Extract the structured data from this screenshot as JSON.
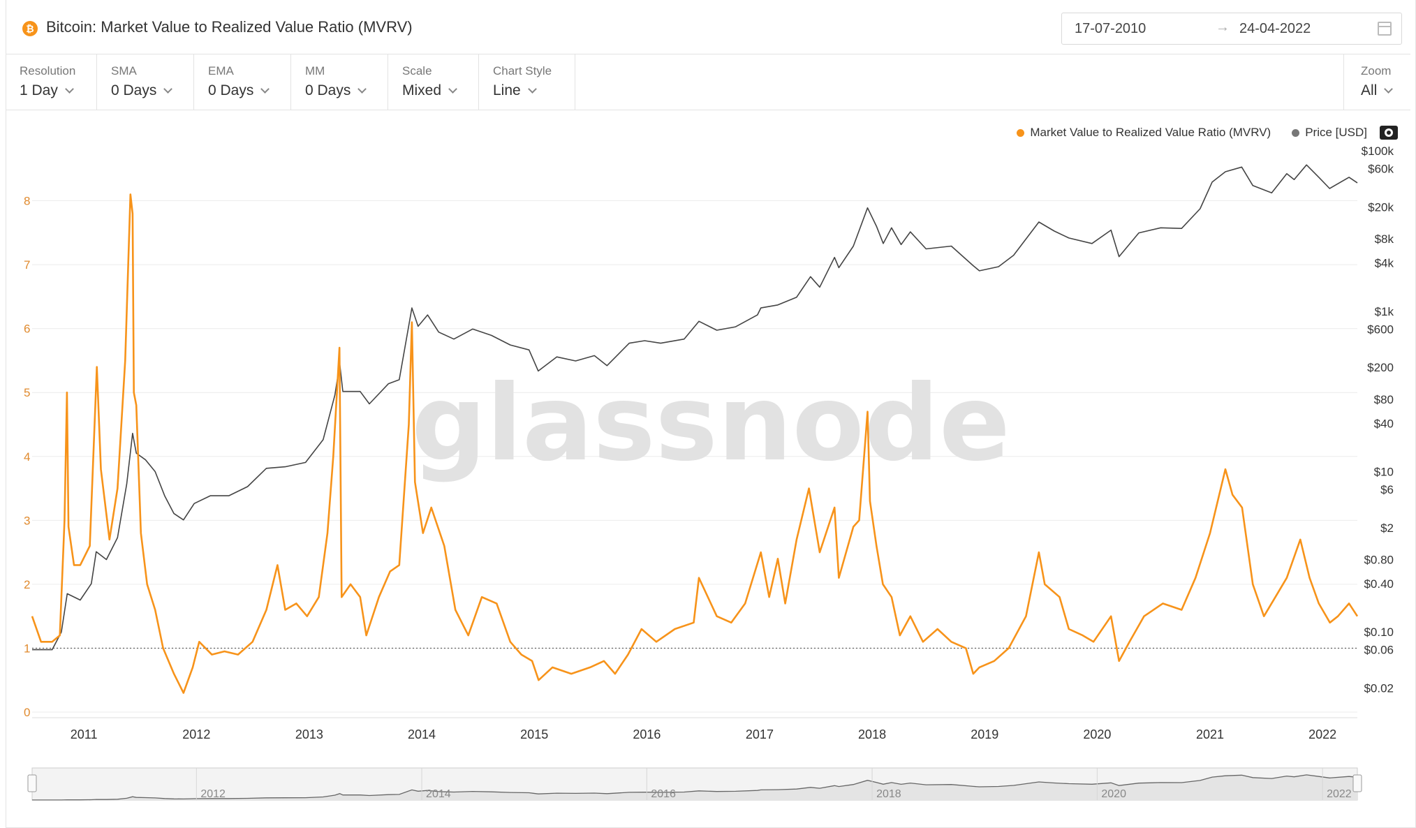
{
  "header": {
    "title": "Bitcoin: Market Value to Realized Value Ratio (MVRV)",
    "logo_icon": "bitcoin-logo-icon",
    "logo_glyph": "₿",
    "date_from": "17-07-2010",
    "date_arrow": "→",
    "date_to": "24-04-2022"
  },
  "controls": [
    {
      "label": "Resolution",
      "value": "1 Day"
    },
    {
      "label": "SMA",
      "value": "0 Days"
    },
    {
      "label": "EMA",
      "value": "0 Days"
    },
    {
      "label": "MM",
      "value": "0 Days"
    },
    {
      "label": "Scale",
      "value": "Mixed"
    },
    {
      "label": "Chart Style",
      "value": "Line"
    }
  ],
  "zoom": {
    "label": "Zoom",
    "value": "All"
  },
  "watermark": "glassnode",
  "colors": {
    "mvrv": "#f7931a",
    "price": "#444444",
    "grid": "#ececec"
  },
  "chart_data": {
    "type": "line",
    "title": "Bitcoin: Market Value to Realized Value Ratio (MVRV)",
    "legend_position": "top-right",
    "grid": true,
    "x_ticks": [
      "2011",
      "2012",
      "2013",
      "2014",
      "2015",
      "2016",
      "2017",
      "2018",
      "2019",
      "2020",
      "2021",
      "2022"
    ],
    "x_range": [
      "2010-07-17",
      "2022-04-24"
    ],
    "y_left": {
      "label": "",
      "range": [
        0,
        9
      ],
      "ticks": [
        "0",
        "1",
        "2",
        "3",
        "4",
        "5",
        "6",
        "7",
        "8"
      ],
      "scale": "linear"
    },
    "y_right": {
      "label": "",
      "range": [
        0.01,
        150000
      ],
      "scale": "log",
      "ticks": [
        "$100k",
        "$60k",
        "$20k",
        "$8k",
        "$4k",
        "$1k",
        "$600",
        "$200",
        "$80",
        "$40",
        "$10",
        "$6",
        "$2",
        "$0.80",
        "$0.40",
        "$0.10",
        "$0.06",
        "$0.02"
      ],
      "tick_values": [
        100000,
        60000,
        20000,
        8000,
        4000,
        1000,
        600,
        200,
        80,
        40,
        10,
        6,
        2,
        0.8,
        0.4,
        0.1,
        0.06,
        0.02
      ]
    },
    "reference_line": {
      "axis": "left",
      "value": 1,
      "style": "dotted"
    },
    "series": [
      {
        "name": "Market Value to Realized Value Ratio (MVRV)",
        "axis": "left",
        "points": [
          [
            "2010-07-17",
            1.5
          ],
          [
            "2010-08-15",
            1.1
          ],
          [
            "2010-09-20",
            1.1
          ],
          [
            "2010-10-15",
            1.2
          ],
          [
            "2010-10-30",
            3.0
          ],
          [
            "2010-11-07",
            5.0
          ],
          [
            "2010-11-12",
            2.9
          ],
          [
            "2010-11-30",
            2.3
          ],
          [
            "2010-12-20",
            2.3
          ],
          [
            "2011-01-20",
            2.6
          ],
          [
            "2011-02-12",
            5.4
          ],
          [
            "2011-02-25",
            3.8
          ],
          [
            "2011-03-25",
            2.7
          ],
          [
            "2011-04-20",
            3.5
          ],
          [
            "2011-05-15",
            5.5
          ],
          [
            "2011-06-01",
            8.1
          ],
          [
            "2011-06-08",
            7.8
          ],
          [
            "2011-06-12",
            5.0
          ],
          [
            "2011-06-20",
            4.8
          ],
          [
            "2011-07-05",
            2.8
          ],
          [
            "2011-07-25",
            2.0
          ],
          [
            "2011-08-20",
            1.6
          ],
          [
            "2011-09-15",
            1.0
          ],
          [
            "2011-10-20",
            0.6
          ],
          [
            "2011-11-20",
            0.3
          ],
          [
            "2011-12-20",
            0.7
          ],
          [
            "2012-01-10",
            1.1
          ],
          [
            "2012-02-20",
            0.9
          ],
          [
            "2012-04-01",
            0.95
          ],
          [
            "2012-05-15",
            0.9
          ],
          [
            "2012-07-01",
            1.1
          ],
          [
            "2012-08-15",
            1.6
          ],
          [
            "2012-09-20",
            2.3
          ],
          [
            "2012-10-15",
            1.6
          ],
          [
            "2012-11-20",
            1.7
          ],
          [
            "2012-12-25",
            1.5
          ],
          [
            "2013-02-01",
            1.8
          ],
          [
            "2013-03-01",
            2.8
          ],
          [
            "2013-03-20",
            4.0
          ],
          [
            "2013-04-09",
            5.7
          ],
          [
            "2013-04-16",
            1.8
          ],
          [
            "2013-05-15",
            2.0
          ],
          [
            "2013-06-15",
            1.8
          ],
          [
            "2013-07-05",
            1.2
          ],
          [
            "2013-08-15",
            1.8
          ],
          [
            "2013-09-20",
            2.2
          ],
          [
            "2013-10-20",
            2.3
          ],
          [
            "2013-11-20",
            4.5
          ],
          [
            "2013-11-30",
            6.1
          ],
          [
            "2013-12-10",
            3.6
          ],
          [
            "2014-01-05",
            2.8
          ],
          [
            "2014-02-01",
            3.2
          ],
          [
            "2014-03-15",
            2.6
          ],
          [
            "2014-04-20",
            1.6
          ],
          [
            "2014-06-01",
            1.2
          ],
          [
            "2014-07-15",
            1.8
          ],
          [
            "2014-09-01",
            1.7
          ],
          [
            "2014-10-15",
            1.1
          ],
          [
            "2014-11-20",
            0.9
          ],
          [
            "2014-12-25",
            0.8
          ],
          [
            "2015-01-15",
            0.5
          ],
          [
            "2015-03-01",
            0.7
          ],
          [
            "2015-05-01",
            0.6
          ],
          [
            "2015-07-01",
            0.7
          ],
          [
            "2015-08-15",
            0.8
          ],
          [
            "2015-09-20",
            0.6
          ],
          [
            "2015-11-01",
            0.9
          ],
          [
            "2015-12-15",
            1.3
          ],
          [
            "2016-02-01",
            1.1
          ],
          [
            "2016-04-01",
            1.3
          ],
          [
            "2016-06-01",
            1.4
          ],
          [
            "2016-06-18",
            2.1
          ],
          [
            "2016-08-15",
            1.5
          ],
          [
            "2016-10-01",
            1.4
          ],
          [
            "2016-11-15",
            1.7
          ],
          [
            "2017-01-05",
            2.5
          ],
          [
            "2017-02-01",
            1.8
          ],
          [
            "2017-03-01",
            2.4
          ],
          [
            "2017-03-25",
            1.7
          ],
          [
            "2017-05-01",
            2.7
          ],
          [
            "2017-06-10",
            3.5
          ],
          [
            "2017-07-15",
            2.5
          ],
          [
            "2017-09-01",
            3.2
          ],
          [
            "2017-09-15",
            2.1
          ],
          [
            "2017-11-01",
            2.9
          ],
          [
            "2017-11-20",
            3.0
          ],
          [
            "2017-12-17",
            4.7
          ],
          [
            "2017-12-25",
            3.3
          ],
          [
            "2018-01-15",
            2.6
          ],
          [
            "2018-02-05",
            2.0
          ],
          [
            "2018-03-05",
            1.8
          ],
          [
            "2018-04-01",
            1.2
          ],
          [
            "2018-05-05",
            1.5
          ],
          [
            "2018-06-15",
            1.1
          ],
          [
            "2018-08-01",
            1.3
          ],
          [
            "2018-09-15",
            1.1
          ],
          [
            "2018-11-01",
            1.0
          ],
          [
            "2018-11-25",
            0.6
          ],
          [
            "2018-12-15",
            0.7
          ],
          [
            "2019-02-01",
            0.8
          ],
          [
            "2019-03-20",
            1.0
          ],
          [
            "2019-05-15",
            1.5
          ],
          [
            "2019-06-26",
            2.5
          ],
          [
            "2019-07-15",
            2.0
          ],
          [
            "2019-09-01",
            1.8
          ],
          [
            "2019-10-01",
            1.3
          ],
          [
            "2019-11-15",
            1.2
          ],
          [
            "2019-12-20",
            1.1
          ],
          [
            "2020-02-15",
            1.5
          ],
          [
            "2020-03-12",
            0.8
          ],
          [
            "2020-04-15",
            1.1
          ],
          [
            "2020-06-01",
            1.5
          ],
          [
            "2020-08-01",
            1.7
          ],
          [
            "2020-10-01",
            1.6
          ],
          [
            "2020-11-15",
            2.1
          ],
          [
            "2021-01-01",
            2.8
          ],
          [
            "2021-02-20",
            3.8
          ],
          [
            "2021-03-15",
            3.4
          ],
          [
            "2021-04-15",
            3.2
          ],
          [
            "2021-05-20",
            2.0
          ],
          [
            "2021-06-25",
            1.5
          ],
          [
            "2021-08-01",
            1.8
          ],
          [
            "2021-09-07",
            2.1
          ],
          [
            "2021-10-21",
            2.7
          ],
          [
            "2021-11-20",
            2.1
          ],
          [
            "2021-12-20",
            1.7
          ],
          [
            "2022-01-25",
            1.4
          ],
          [
            "2022-02-20",
            1.5
          ],
          [
            "2022-03-28",
            1.7
          ],
          [
            "2022-04-24",
            1.5
          ]
        ]
      },
      {
        "name": "Price [USD]",
        "axis": "right",
        "points": [
          [
            "2010-07-17",
            0.06
          ],
          [
            "2010-08-20",
            0.06
          ],
          [
            "2010-09-20",
            0.06
          ],
          [
            "2010-10-20",
            0.1
          ],
          [
            "2010-11-08",
            0.3
          ],
          [
            "2010-12-20",
            0.25
          ],
          [
            "2011-01-25",
            0.4
          ],
          [
            "2011-02-10",
            1.0
          ],
          [
            "2011-03-15",
            0.8
          ],
          [
            "2011-04-20",
            1.5
          ],
          [
            "2011-05-20",
            7.0
          ],
          [
            "2011-06-08",
            30.0
          ],
          [
            "2011-06-20",
            17.0
          ],
          [
            "2011-07-20",
            14.0
          ],
          [
            "2011-08-20",
            10.0
          ],
          [
            "2011-09-20",
            5.0
          ],
          [
            "2011-10-20",
            3.0
          ],
          [
            "2011-11-20",
            2.5
          ],
          [
            "2011-12-25",
            4.0
          ],
          [
            "2012-02-15",
            5.0
          ],
          [
            "2012-04-15",
            5.0
          ],
          [
            "2012-06-15",
            6.5
          ],
          [
            "2012-08-15",
            11.0
          ],
          [
            "2012-10-15",
            11.5
          ],
          [
            "2012-12-20",
            13.0
          ],
          [
            "2013-02-15",
            25.0
          ],
          [
            "2013-03-25",
            90.0
          ],
          [
            "2013-04-10",
            220.0
          ],
          [
            "2013-04-20",
            100.0
          ],
          [
            "2013-06-15",
            100.0
          ],
          [
            "2013-07-15",
            70.0
          ],
          [
            "2013-09-15",
            125.0
          ],
          [
            "2013-10-20",
            140.0
          ],
          [
            "2013-11-30",
            1100.0
          ],
          [
            "2013-12-20",
            650.0
          ],
          [
            "2014-01-20",
            900.0
          ],
          [
            "2014-02-25",
            550.0
          ],
          [
            "2014-04-15",
            450.0
          ],
          [
            "2014-06-15",
            600.0
          ],
          [
            "2014-08-15",
            500.0
          ],
          [
            "2014-10-15",
            380.0
          ],
          [
            "2014-12-15",
            330.0
          ],
          [
            "2015-01-14",
            180.0
          ],
          [
            "2015-03-15",
            270.0
          ],
          [
            "2015-05-15",
            240.0
          ],
          [
            "2015-07-15",
            280.0
          ],
          [
            "2015-08-25",
            210.0
          ],
          [
            "2015-11-05",
            400.0
          ],
          [
            "2015-12-25",
            430.0
          ],
          [
            "2016-02-15",
            400.0
          ],
          [
            "2016-05-01",
            450.0
          ],
          [
            "2016-06-18",
            750.0
          ],
          [
            "2016-08-15",
            580.0
          ],
          [
            "2016-10-15",
            640.0
          ],
          [
            "2016-12-25",
            900.0
          ],
          [
            "2017-01-05",
            1100.0
          ],
          [
            "2017-03-01",
            1200.0
          ],
          [
            "2017-05-01",
            1500.0
          ],
          [
            "2017-06-15",
            2700.0
          ],
          [
            "2017-07-15",
            2000.0
          ],
          [
            "2017-09-01",
            4700.0
          ],
          [
            "2017-09-15",
            3500.0
          ],
          [
            "2017-11-01",
            6500.0
          ],
          [
            "2017-12-17",
            19500.0
          ],
          [
            "2018-01-15",
            11500.0
          ],
          [
            "2018-02-06",
            7000.0
          ],
          [
            "2018-03-05",
            11000.0
          ],
          [
            "2018-04-05",
            6800.0
          ],
          [
            "2018-05-05",
            9800.0
          ],
          [
            "2018-06-25",
            6000.0
          ],
          [
            "2018-09-15",
            6500.0
          ],
          [
            "2018-11-25",
            3700.0
          ],
          [
            "2018-12-15",
            3200.0
          ],
          [
            "2019-02-15",
            3600.0
          ],
          [
            "2019-04-05",
            5000.0
          ],
          [
            "2019-06-26",
            13000.0
          ],
          [
            "2019-08-15",
            10000.0
          ],
          [
            "2019-10-01",
            8200.0
          ],
          [
            "2019-12-15",
            7000.0
          ],
          [
            "2020-02-15",
            10300.0
          ],
          [
            "2020-03-12",
            4800.0
          ],
          [
            "2020-05-15",
            9500.0
          ],
          [
            "2020-07-25",
            11000.0
          ],
          [
            "2020-10-01",
            10800.0
          ],
          [
            "2020-11-30",
            19000.0
          ],
          [
            "2021-01-08",
            41000.0
          ],
          [
            "2021-02-20",
            55000.0
          ],
          [
            "2021-04-14",
            63000.0
          ],
          [
            "2021-05-20",
            37000.0
          ],
          [
            "2021-07-20",
            30000.0
          ],
          [
            "2021-09-07",
            52000.0
          ],
          [
            "2021-10-01",
            44000.0
          ],
          [
            "2021-11-10",
            67000.0
          ],
          [
            "2021-12-20",
            47000.0
          ],
          [
            "2022-01-24",
            34000.0
          ],
          [
            "2022-03-28",
            47000.0
          ],
          [
            "2022-04-24",
            40000.0
          ]
        ]
      }
    ],
    "navigator": {
      "ticks": [
        "2012",
        "2014",
        "2016",
        "2018",
        "2020",
        "2022"
      ]
    }
  }
}
